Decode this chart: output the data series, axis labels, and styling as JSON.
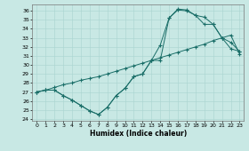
{
  "xlabel": "Humidex (Indice chaleur)",
  "bg_color": "#c8e8e4",
  "line_color": "#1a6e68",
  "grid_color": "#a8d4d0",
  "xlim": [
    -0.5,
    23.5
  ],
  "ylim": [
    23.8,
    36.7
  ],
  "yticks": [
    24,
    25,
    26,
    27,
    28,
    29,
    30,
    31,
    32,
    33,
    34,
    35,
    36
  ],
  "xticks": [
    0,
    1,
    2,
    3,
    4,
    5,
    6,
    7,
    8,
    9,
    10,
    11,
    12,
    13,
    14,
    15,
    16,
    17,
    18,
    19,
    20,
    21,
    22,
    23
  ],
  "line1_x": [
    0,
    1,
    2,
    3,
    4,
    5,
    6,
    7,
    8,
    9,
    10,
    11,
    12,
    13,
    14,
    15,
    16,
    17,
    18,
    19,
    20,
    21,
    22,
    23
  ],
  "line1_y": [
    27.0,
    27.2,
    27.5,
    27.8,
    28.0,
    28.3,
    28.5,
    28.7,
    29.0,
    29.3,
    29.6,
    29.9,
    30.2,
    30.5,
    30.8,
    31.1,
    31.4,
    31.7,
    32.0,
    32.3,
    32.7,
    33.0,
    33.3,
    31.2
  ],
  "line2_x": [
    0,
    1,
    2,
    3,
    4,
    5,
    6,
    7,
    8,
    9,
    10,
    11,
    12,
    13,
    14,
    15,
    16,
    17,
    18,
    19,
    20,
    21,
    22,
    23
  ],
  "line2_y": [
    27.0,
    27.2,
    27.2,
    26.6,
    26.1,
    25.5,
    24.9,
    24.5,
    25.3,
    26.6,
    27.4,
    28.7,
    29.0,
    30.5,
    32.2,
    35.2,
    36.1,
    36.0,
    35.5,
    35.3,
    34.5,
    33.0,
    31.8,
    31.5
  ],
  "line3_x": [
    0,
    1,
    2,
    3,
    4,
    5,
    6,
    7,
    8,
    9,
    10,
    11,
    12,
    13,
    14,
    15,
    16,
    17,
    18,
    19,
    20,
    21,
    22,
    23
  ],
  "line3_y": [
    27.0,
    27.2,
    27.2,
    26.6,
    26.1,
    25.5,
    24.9,
    24.5,
    25.3,
    26.6,
    27.4,
    28.7,
    29.0,
    30.5,
    30.5,
    35.2,
    36.2,
    36.1,
    35.5,
    34.5,
    34.5,
    33.0,
    32.5,
    31.5
  ]
}
